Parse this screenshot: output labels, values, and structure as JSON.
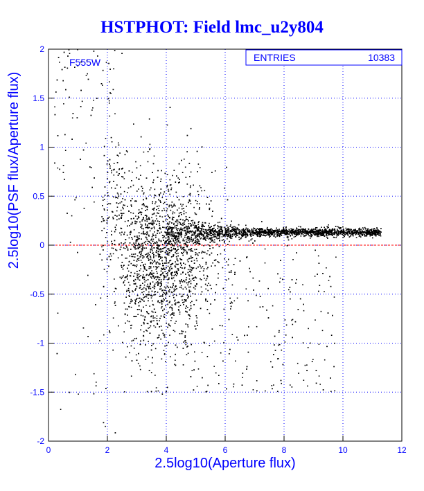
{
  "chart_data": {
    "type": "scatter",
    "title": "HSTPHOT: Field lmc_u2y804",
    "xlabel": "2.5log10(Aperture flux)",
    "ylabel": "2.5log10(PSF flux/Aperture flux)",
    "xlim": [
      0,
      12
    ],
    "ylim": [
      -2,
      2
    ],
    "x_ticks": [
      "0",
      "2",
      "4",
      "6",
      "8",
      "10",
      "12"
    ],
    "y_ticks": [
      "-2",
      "-1.5",
      "-1",
      "-0.5",
      "0",
      "0.5",
      "1",
      "1.5",
      "2"
    ],
    "grid": true,
    "reference_line_y": 0,
    "filter_label": "F555W",
    "stats_box": {
      "label": "ENTRIES",
      "value": "10383",
      "placement": "top-right"
    },
    "colors": {
      "text": "#0000ff",
      "grid": "#0000ff",
      "points": "#000000",
      "reference_line": "#ff0000"
    },
    "point_count_shown": 10383,
    "distribution": {
      "description_only_for_generation": false,
      "sequence": {
        "x_range": [
          4.0,
          11.3
        ],
        "y_center": 0.13,
        "y_spread": 0.04
      },
      "cloud": {
        "x_range": [
          2.0,
          10.0
        ],
        "y_center": -0.1,
        "y_spread": 0.45
      }
    }
  }
}
